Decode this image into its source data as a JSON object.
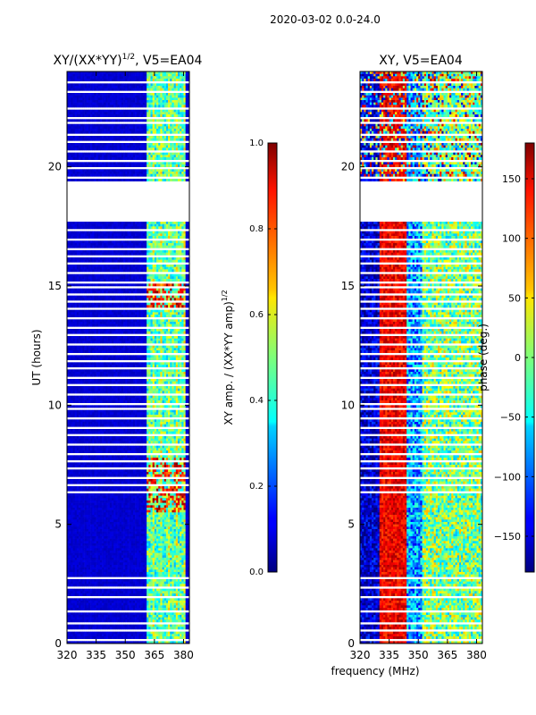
{
  "figure": {
    "suptitle": "2020-03-02 0.0-24.0",
    "shared_xlabel": "frequency (MHz)"
  },
  "chart_data": [
    {
      "type": "heatmap",
      "title_base": "XY/(XX*YY)",
      "title_exponent": "1/2",
      "title_suffix": ", V5=EA04",
      "xlabel": "",
      "ylabel": "UT (hours)",
      "xlim": [
        320,
        383
      ],
      "ylim": [
        0,
        24
      ],
      "xticks": [
        320,
        335,
        350,
        365,
        380
      ],
      "yticks": [
        0,
        5,
        10,
        15,
        20
      ],
      "colorbar": {
        "label_base": "XY amp. / (XX*YY amp)",
        "label_exponent": "1/2",
        "range": [
          0.0,
          1.0
        ],
        "ticks": [
          "0.0",
          "0.2",
          "0.4",
          "0.6",
          "0.8",
          "1.0"
        ],
        "colormap": "jet"
      },
      "flagged_hours": [
        [
          17.8,
          19.4
        ]
      ],
      "features": [
        {
          "desc": "elevated amplitude band",
          "freq_range": [
            361,
            381
          ],
          "value": 0.45
        },
        {
          "desc": "high amplitude spots",
          "freq_range": [
            361,
            381
          ],
          "hour_range": [
            14,
            15
          ],
          "value": 0.9
        },
        {
          "desc": "high amplitude spots",
          "freq_range": [
            361,
            381
          ],
          "hour_range": [
            5.5,
            7.8
          ],
          "value": 0.85
        },
        {
          "desc": "background",
          "value": 0.05
        }
      ]
    },
    {
      "type": "heatmap",
      "title": "XY, V5=EA04",
      "xlabel": "",
      "ylabel": "",
      "xlim": [
        320,
        383
      ],
      "ylim": [
        0,
        24
      ],
      "xticks": [
        320,
        335,
        350,
        365,
        380
      ],
      "yticks": [
        0,
        5,
        10,
        15,
        20
      ],
      "colorbar": {
        "label": "phase (deg.)",
        "range": [
          -180,
          180
        ],
        "ticks": [
          "−150",
          "−100",
          "−50",
          "0",
          "50",
          "100",
          "150"
        ],
        "colormap": "jet"
      },
      "flagged_hours": [
        [
          17.8,
          19.4
        ]
      ],
      "features": [
        {
          "desc": "red phase band",
          "freq_range": [
            331,
            344
          ],
          "value": 160
        },
        {
          "desc": "blue phase band",
          "freq_range": [
            320,
            330
          ],
          "value": -150
        },
        {
          "desc": "green/yellow mix",
          "freq_range": [
            350,
            383
          ],
          "value": 0
        }
      ]
    }
  ]
}
